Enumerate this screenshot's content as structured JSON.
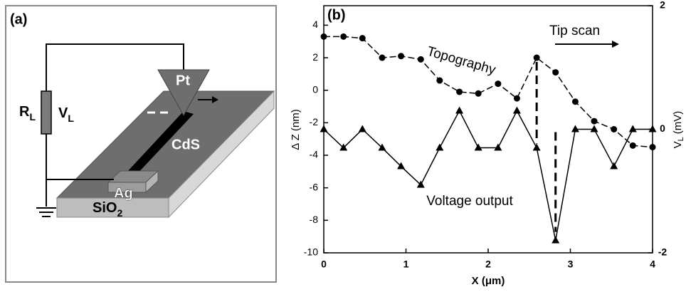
{
  "panel_a": {
    "label": "(a)",
    "resistor": [
      "R",
      "L"
    ],
    "voltage": [
      "V",
      "L"
    ],
    "tip": "Pt",
    "nanowire": "CdS",
    "electrode": "Ag",
    "substrate": [
      "SiO",
      "2"
    ]
  },
  "chart_data": {
    "type": "line",
    "panel_label": "(b)",
    "xlabel": "X (μm)",
    "ylabel": "Δ Z (nm)",
    "y2label": [
      "V",
      "L",
      "(mV)"
    ],
    "x": [
      0,
      0.24,
      0.47,
      0.71,
      0.94,
      1.18,
      1.41,
      1.65,
      1.88,
      2.12,
      2.35,
      2.59,
      2.82,
      3.06,
      3.29,
      3.53,
      3.76,
      4.0
    ],
    "xlim": [
      0,
      4
    ],
    "xticks": [
      0,
      1,
      2,
      3,
      4
    ],
    "ylim": [
      -10,
      5.2
    ],
    "yticks": [
      -10,
      -8,
      -6,
      -4,
      -2,
      0,
      2,
      4
    ],
    "y2lim": [
      -2,
      2
    ],
    "y2ticks": [
      -2,
      0,
      2
    ],
    "series": [
      {
        "name": "Topography",
        "color": "#000000",
        "marker": "circle",
        "style": "dashed",
        "values": [
          3.3,
          3.3,
          3.2,
          2.0,
          2.1,
          1.9,
          0.6,
          -0.1,
          -0.2,
          0.4,
          -0.5,
          2.0,
          1.1,
          -0.7,
          -1.9,
          -2.4,
          -3.4,
          -3.5
        ]
      },
      {
        "name": "Voltage output",
        "color": "#000000",
        "marker": "triangle",
        "style": "solid",
        "axis": "y2",
        "values": [
          0,
          -0.3,
          0,
          -0.3,
          -0.6,
          -0.9,
          -0.3,
          0.3,
          -0.3,
          -0.3,
          0.3,
          -0.3,
          -1.8,
          0,
          0,
          -0.6,
          0,
          0
        ]
      }
    ],
    "annotations": [
      "Tip scan"
    ]
  }
}
